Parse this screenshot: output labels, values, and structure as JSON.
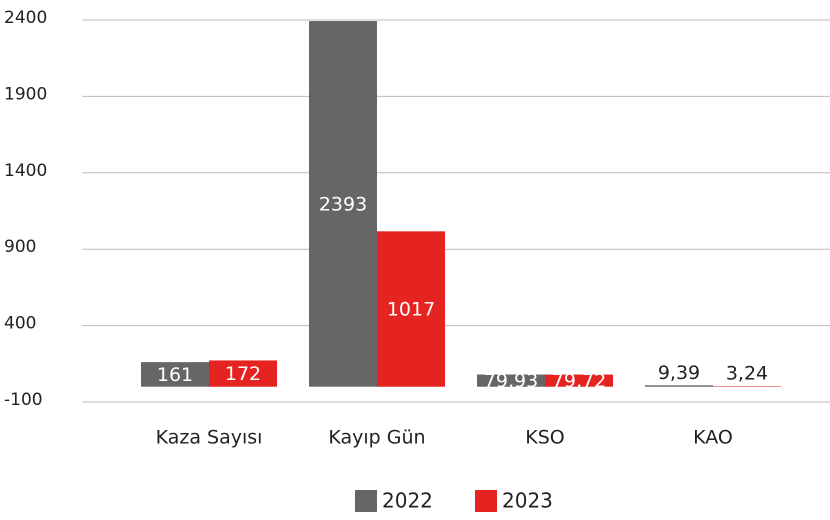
{
  "chart_data": {
    "type": "bar",
    "categories": [
      "Kaza Sayısı",
      "Kayıp Gün",
      "KSO",
      "KAO"
    ],
    "series": [
      {
        "name": "2022",
        "color": "#666666",
        "values": [
          161,
          2393,
          79.93,
          9.39
        ],
        "value_labels": [
          "161",
          "2393",
          "79,93",
          "9,39"
        ]
      },
      {
        "name": "2023",
        "color": "#e52421",
        "values": [
          172,
          1017,
          79.72,
          3.24
        ],
        "value_labels": [
          "172",
          "1017",
          "79,72",
          "3,24"
        ]
      }
    ],
    "ylim": [
      -100,
      2400
    ],
    "yticks": [
      -100,
      400,
      900,
      1400,
      1900,
      2400
    ],
    "grid": true,
    "legend": "bottom"
  }
}
